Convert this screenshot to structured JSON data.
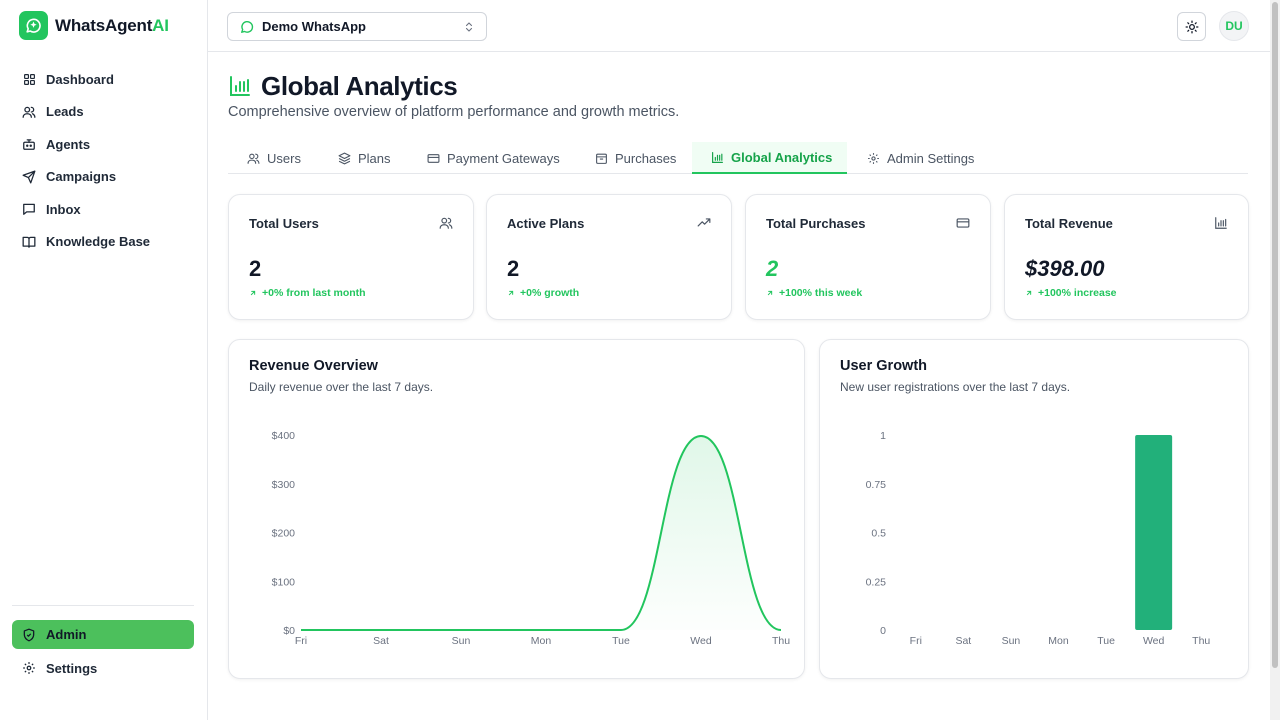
{
  "app": {
    "brand_main": "WhatsAgent",
    "brand_accent": "AI",
    "brand_color": "#22c55e"
  },
  "sidebar": {
    "items": [
      {
        "label": "Dashboard",
        "icon": "grid-icon"
      },
      {
        "label": "Leads",
        "icon": "users-icon"
      },
      {
        "label": "Agents",
        "icon": "bot-icon"
      },
      {
        "label": "Campaigns",
        "icon": "send-icon"
      },
      {
        "label": "Inbox",
        "icon": "message-icon"
      },
      {
        "label": "Knowledge Base",
        "icon": "book-icon"
      }
    ],
    "bottom": [
      {
        "label": "Admin",
        "icon": "shield-icon",
        "active": true
      },
      {
        "label": "Settings",
        "icon": "gear-icon"
      }
    ]
  },
  "topbar": {
    "workspace": "Demo WhatsApp",
    "avatar_initials": "DU"
  },
  "page": {
    "title": "Global Analytics",
    "subtitle": "Comprehensive overview of platform performance and growth metrics."
  },
  "tabs": [
    {
      "label": "Users",
      "icon": "users-icon"
    },
    {
      "label": "Plans",
      "icon": "layers-icon"
    },
    {
      "label": "Payment Gateways",
      "icon": "card-icon"
    },
    {
      "label": "Purchases",
      "icon": "package-icon"
    },
    {
      "label": "Global Analytics",
      "icon": "bar-chart-icon",
      "active": true
    },
    {
      "label": "Admin Settings",
      "icon": "gear-icon"
    }
  ],
  "stats": [
    {
      "label": "Total Users",
      "value": "2",
      "change": "+0% from last month",
      "icon": "users-icon"
    },
    {
      "label": "Active Plans",
      "value": "2",
      "change": "+0% growth",
      "icon": "trending-up-icon"
    },
    {
      "label": "Total Purchases",
      "value": "2",
      "change": "+100% this week",
      "icon": "card-icon"
    },
    {
      "label": "Total Revenue",
      "value": "$398.00",
      "change": "+100% increase",
      "icon": "bar-chart-icon"
    }
  ],
  "charts": [
    {
      "title": "Revenue Overview",
      "subtitle": "Daily revenue over the last 7 days.",
      "chart_data": {
        "type": "area",
        "categories": [
          "Fri",
          "Sat",
          "Sun",
          "Mon",
          "Tue",
          "Wed",
          "Thu"
        ],
        "values": [
          0,
          0,
          0,
          0,
          0,
          398,
          0
        ],
        "ylim": [
          0,
          400
        ],
        "yticks": [
          "$0",
          "$100",
          "$200",
          "$300",
          "$400"
        ],
        "color": "#22c55e"
      }
    },
    {
      "title": "User Growth",
      "subtitle": "New user registrations over the last 7 days.",
      "chart_data": {
        "type": "bar",
        "categories": [
          "Fri",
          "Sat",
          "Sun",
          "Mon",
          "Tue",
          "Wed",
          "Thu"
        ],
        "values": [
          0,
          0,
          0,
          0,
          0,
          1,
          0
        ],
        "ylim": [
          0,
          1
        ],
        "yticks": [
          "0",
          "0.25",
          "0.5",
          "0.75",
          "1"
        ],
        "color": "#22b07a"
      }
    }
  ]
}
